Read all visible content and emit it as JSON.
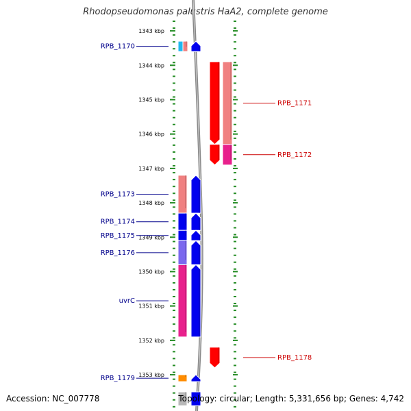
{
  "title": "Rhodopseudomonas palustris HaA2, complete genome",
  "accession_text": "Accession: NC_007778",
  "stats_text": "Topology: circular; Length: 5,331,656 bp; Genes: 4,742",
  "kbp_start": 1342.6,
  "ticks": [
    "1343 kbp",
    "1344 kbp",
    "1345 kbp",
    "1346 kbp",
    "1347 kbp",
    "1348 kbp",
    "1349 kbp",
    "1350 kbp",
    "1351 kbp",
    "1352 kbp",
    "1353 kbp"
  ],
  "tick_kbp": [
    1343,
    1344,
    1345,
    1346,
    1347,
    1348,
    1349,
    1350,
    1351,
    1352,
    1353
  ],
  "colors": {
    "blue": "#0000ee",
    "pink": "#f08080",
    "red": "#ff0000",
    "magenta": "#e8208c",
    "slate": "#7b68ee",
    "cyan": "#20b8ef",
    "orange": "#ff8c00",
    "gray": "#b8b8b8",
    "dots": "#228b22",
    "backbone": "#888888",
    "label_blue": "#00008b",
    "label_red": "#cc0000"
  },
  "genes": [
    {
      "label": "RPB_1170",
      "side": "left",
      "col": "outer",
      "start": 1343.3,
      "end": 1343.6,
      "color": "cyan"
    },
    {
      "label": "",
      "side": "left",
      "col": "outer2",
      "start": 1343.3,
      "end": 1343.6,
      "color": "pink"
    },
    {
      "label": "",
      "side": "left",
      "col": "inner",
      "start": 1343.3,
      "end": 1343.6,
      "color": "blue",
      "strand": "+"
    },
    {
      "label": "RPB_1171",
      "side": "right",
      "col": "inner",
      "start": 1343.9,
      "end": 1346.3,
      "color": "red",
      "strand": "-"
    },
    {
      "label": "",
      "side": "right",
      "col": "outer",
      "start": 1343.9,
      "end": 1346.3,
      "color": "pink"
    },
    {
      "label": "RPB_1172",
      "side": "right",
      "col": "inner",
      "start": 1346.3,
      "end": 1346.9,
      "color": "red",
      "strand": "-"
    },
    {
      "label": "",
      "side": "right",
      "col": "outer",
      "start": 1346.3,
      "end": 1346.9,
      "color": "magenta"
    },
    {
      "label": "RPB_1173",
      "side": "left",
      "col": "outer",
      "start": 1347.2,
      "end": 1348.3,
      "color": "pink"
    },
    {
      "label": "",
      "side": "left",
      "col": "inner",
      "start": 1347.2,
      "end": 1348.3,
      "color": "blue",
      "strand": "+"
    },
    {
      "label": "RPB_1174",
      "side": "left",
      "col": "outer",
      "start": 1348.3,
      "end": 1348.8,
      "color": "blue"
    },
    {
      "label": "",
      "side": "left",
      "col": "inner",
      "start": 1348.3,
      "end": 1348.8,
      "color": "blue",
      "strand": "+"
    },
    {
      "label": "RPB_1175",
      "side": "left",
      "col": "outer",
      "start": 1348.8,
      "end": 1349.1,
      "color": "blue"
    },
    {
      "label": "",
      "side": "left",
      "col": "inner",
      "start": 1348.8,
      "end": 1349.1,
      "color": "blue",
      "strand": "+"
    },
    {
      "label": "RPB_1176",
      "side": "left",
      "col": "outer",
      "start": 1349.1,
      "end": 1349.8,
      "color": "slate"
    },
    {
      "label": "",
      "side": "left",
      "col": "inner",
      "start": 1349.1,
      "end": 1349.8,
      "color": "blue",
      "strand": "+"
    },
    {
      "label": "uvrC",
      "side": "left",
      "col": "outer",
      "start": 1349.8,
      "end": 1351.9,
      "color": "magenta"
    },
    {
      "label": "",
      "side": "left",
      "col": "inner",
      "start": 1349.8,
      "end": 1351.9,
      "color": "blue",
      "strand": "+"
    },
    {
      "label": "RPB_1178",
      "side": "right",
      "col": "inner",
      "start": 1352.2,
      "end": 1352.8,
      "color": "red",
      "strand": "-"
    },
    {
      "label": "RPB_1179",
      "side": "left",
      "col": "outer",
      "start": 1353.0,
      "end": 1353.2,
      "color": "orange"
    },
    {
      "label": "",
      "side": "left",
      "col": "inner",
      "start": 1353.0,
      "end": 1353.2,
      "color": "blue",
      "strand": "+"
    },
    {
      "label": "",
      "side": "left",
      "col": "outer",
      "start": 1353.5,
      "end": 1353.9,
      "color": "gray"
    },
    {
      "label": "",
      "side": "left",
      "col": "inner",
      "start": 1353.5,
      "end": 1353.9,
      "color": "blue"
    }
  ]
}
